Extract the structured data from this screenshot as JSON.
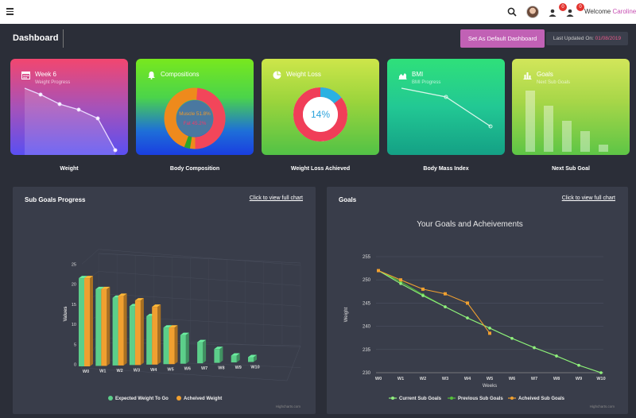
{
  "topbar": {
    "welcome_prefix": "Welcome",
    "user_name": "Caroline!",
    "notif1_count": "0",
    "notif2_count": "0"
  },
  "header": {
    "title": "Dashboard",
    "default_button": "Set As Default Dashboard",
    "updated_label": "Last Updated On:",
    "updated_date": "01/08/2019"
  },
  "cards": [
    {
      "title": "Week 6",
      "sub": "Weight Progress",
      "label": "Weight",
      "icon": "calendar-icon"
    },
    {
      "title": "Compositions",
      "sub": "",
      "label": "Body Composition",
      "icon": "bell-icon"
    },
    {
      "title": "Weight Loss",
      "sub": "",
      "label": "Weight Loss Achieved",
      "icon": "pie-icon"
    },
    {
      "title": "BMI",
      "sub": "BMI Progress",
      "label": "Body Mass Index",
      "icon": "area-chart-icon"
    },
    {
      "title": "Goals",
      "sub": "Next Sub Goals",
      "label": "Next Sub Goal",
      "icon": "bar-chart-icon"
    }
  ],
  "composition": {
    "muscle_label": "Muscle 51.8%",
    "fat_label": "Fat 45.2%"
  },
  "weight_loss": {
    "percent_label": "14%"
  },
  "panels": {
    "sub_goals_title": "Sub Goals Progress",
    "goals_title": "Goals",
    "link_text": "Click to view full chart",
    "credit": "Highcharts.com"
  },
  "colors": {
    "expected": "#5ccf8a",
    "achieved": "#f0a030",
    "current": "#90ee7e",
    "previous": "#55bf3b"
  },
  "chart_data": [
    {
      "type": "bar",
      "title": "",
      "ylabel": "Values",
      "categories": [
        "W0",
        "W1",
        "W2",
        "W3",
        "W4",
        "W5",
        "W6",
        "W7",
        "W8",
        "W9",
        "W10"
      ],
      "yticks": [
        0,
        5,
        10,
        15,
        20,
        25
      ],
      "ylim": [
        0,
        25
      ],
      "series": [
        {
          "name": "Expected Weight To Go",
          "values": [
            22,
            19.5,
            17.5,
            15.5,
            13,
            10,
            8,
            6,
            4,
            2,
            0
          ]
        },
        {
          "name": "Acheived Weight",
          "values": [
            22,
            19.5,
            18,
            17,
            15.5,
            10,
            null,
            null,
            null,
            null,
            null
          ]
        }
      ],
      "legend": "bottom"
    },
    {
      "type": "line",
      "title": "Your Goals and Acheivements",
      "xlabel": "Weeks",
      "ylabel": "Weight",
      "categories": [
        "W0",
        "W1",
        "W2",
        "W3",
        "W4",
        "W5",
        "W6",
        "W7",
        "W8",
        "W9",
        "W10"
      ],
      "yticks": [
        230,
        235,
        240,
        245,
        250,
        255
      ],
      "ylim": [
        230,
        255
      ],
      "series": [
        {
          "name": "Current Sub Goals",
          "values": [
            252,
            249.2,
            246.6,
            244.2,
            241.8,
            239.6,
            237.4,
            235.4,
            233.6,
            231.6,
            230
          ]
        },
        {
          "name": "Previous Sub Goals",
          "values": [
            252,
            249.6,
            246.8,
            244.2,
            241.8,
            239.6,
            237.4,
            235.4,
            233.6,
            231.6,
            230
          ]
        },
        {
          "name": "Acheived Sub Goals",
          "values": [
            252,
            250,
            248,
            247,
            245,
            238.5,
            null,
            null,
            null,
            null,
            null
          ]
        }
      ],
      "legend": "bottom"
    }
  ]
}
